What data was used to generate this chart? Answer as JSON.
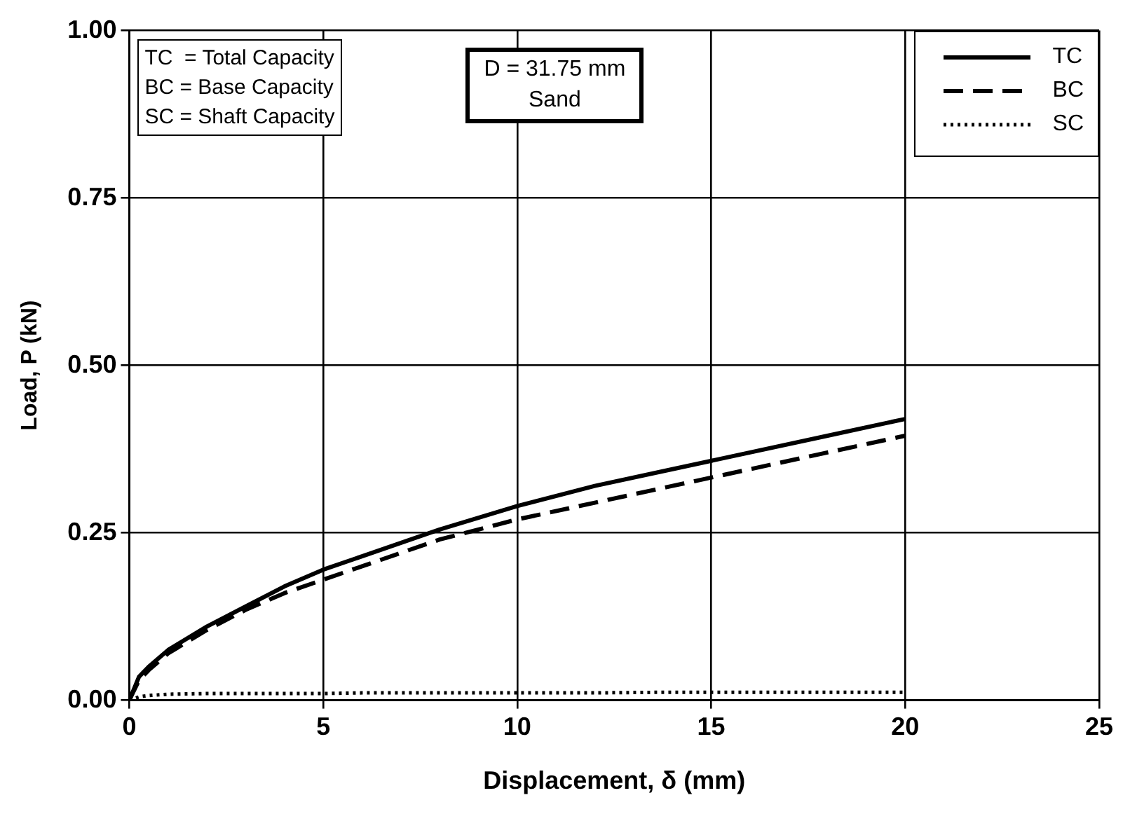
{
  "chart_data": {
    "type": "line",
    "xlabel": "Displacement, δ (mm)",
    "ylabel": "Load, P (kN)",
    "xlim": [
      0,
      25
    ],
    "xticks": [
      0,
      5,
      10,
      15,
      20,
      25
    ],
    "ylim": [
      0,
      1
    ],
    "yticks": [
      {
        "value": 0,
        "label": "0.00"
      },
      {
        "value": 0.25,
        "label": "0.25"
      },
      {
        "value": 0.5,
        "label": "0.50"
      },
      {
        "value": 0.75,
        "label": "0.75"
      },
      {
        "value": 1,
        "label": "1.00"
      }
    ],
    "grid": true,
    "legend": "top right",
    "marker": "none",
    "x": [
      0,
      0.25,
      0.5,
      1,
      2,
      3,
      4,
      5,
      6,
      8,
      10,
      12,
      14,
      16,
      18,
      20
    ],
    "series": [
      {
        "name": "TC",
        "color": "#000000",
        "line_style": "solid",
        "values": [
          0,
          0.035,
          0.05,
          0.075,
          0.11,
          0.14,
          0.17,
          0.195,
          0.215,
          0.255,
          0.29,
          0.32,
          0.345,
          0.37,
          0.395,
          0.42
        ]
      },
      {
        "name": "BC",
        "color": "#000000",
        "line_style": "dashed",
        "values": [
          0,
          0.03,
          0.045,
          0.07,
          0.105,
          0.135,
          0.16,
          0.18,
          0.2,
          0.24,
          0.27,
          0.295,
          0.32,
          0.345,
          0.37,
          0.395
        ]
      },
      {
        "name": "SC",
        "color": "#000000",
        "line_style": "dotted",
        "values": [
          0,
          0.005,
          0.007,
          0.009,
          0.01,
          0.01,
          0.01,
          0.01,
          0.011,
          0.011,
          0.011,
          0.011,
          0.012,
          0.012,
          0.012,
          0.012
        ]
      }
    ],
    "annotations": [
      "TC  = Total Capacity\nBC = Base Capacity\nSC = Shaft Capacity",
      "D = 31.75 mm\nSand"
    ]
  }
}
